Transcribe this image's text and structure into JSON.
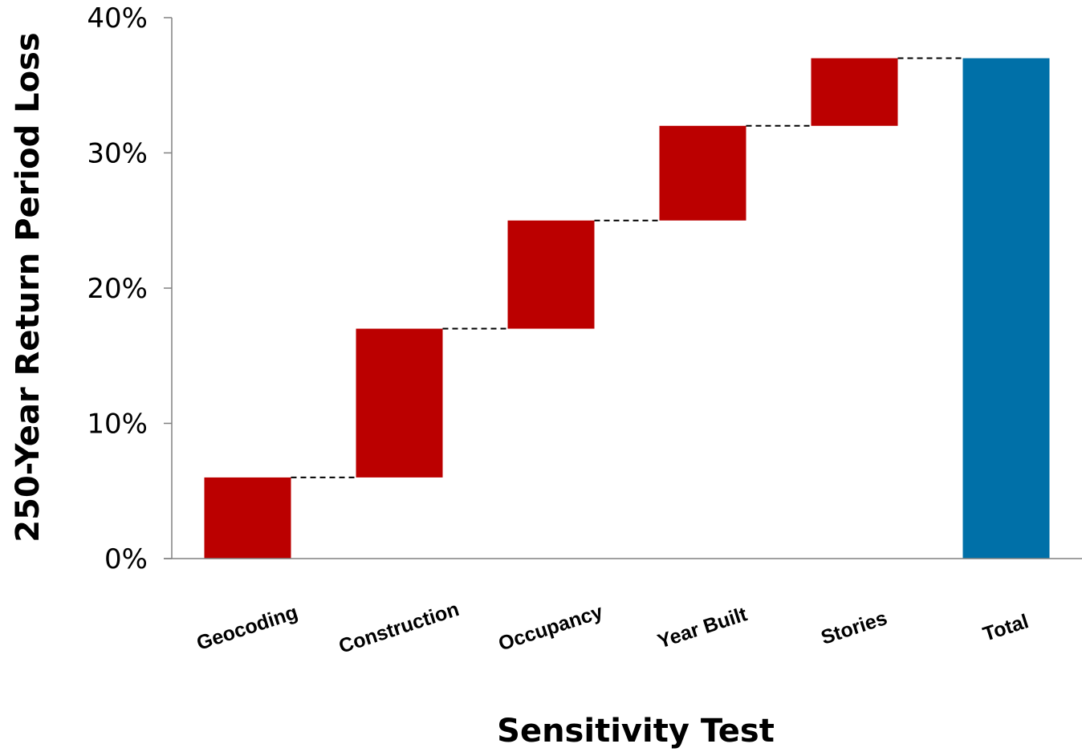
{
  "chart_data": {
    "type": "bar",
    "subtype": "waterfall",
    "title": "",
    "xlabel": "Sensitivity Test",
    "ylabel": "250-Year Return Period Loss",
    "ylim": [
      0,
      40
    ],
    "yticks": [
      0,
      10,
      20,
      30,
      40
    ],
    "ytick_labels": [
      "0%",
      "10%",
      "20%",
      "30%",
      "40%"
    ],
    "grid": false,
    "legend": "none",
    "categories": [
      "Geocoding",
      "Construction",
      "Occupancy",
      "Year Built",
      "Stories",
      "Total"
    ],
    "increments": [
      6,
      11,
      8,
      7,
      5,
      37
    ],
    "bar_bottoms": [
      0,
      6,
      17,
      25,
      32,
      0
    ],
    "bar_tops": [
      6,
      17,
      25,
      32,
      37,
      37
    ],
    "kinds": [
      "step",
      "step",
      "step",
      "step",
      "step",
      "total"
    ],
    "colors": {
      "step": "#bb0000",
      "total": "#0070a8",
      "axis": "#808080",
      "connector": "#000000"
    }
  }
}
